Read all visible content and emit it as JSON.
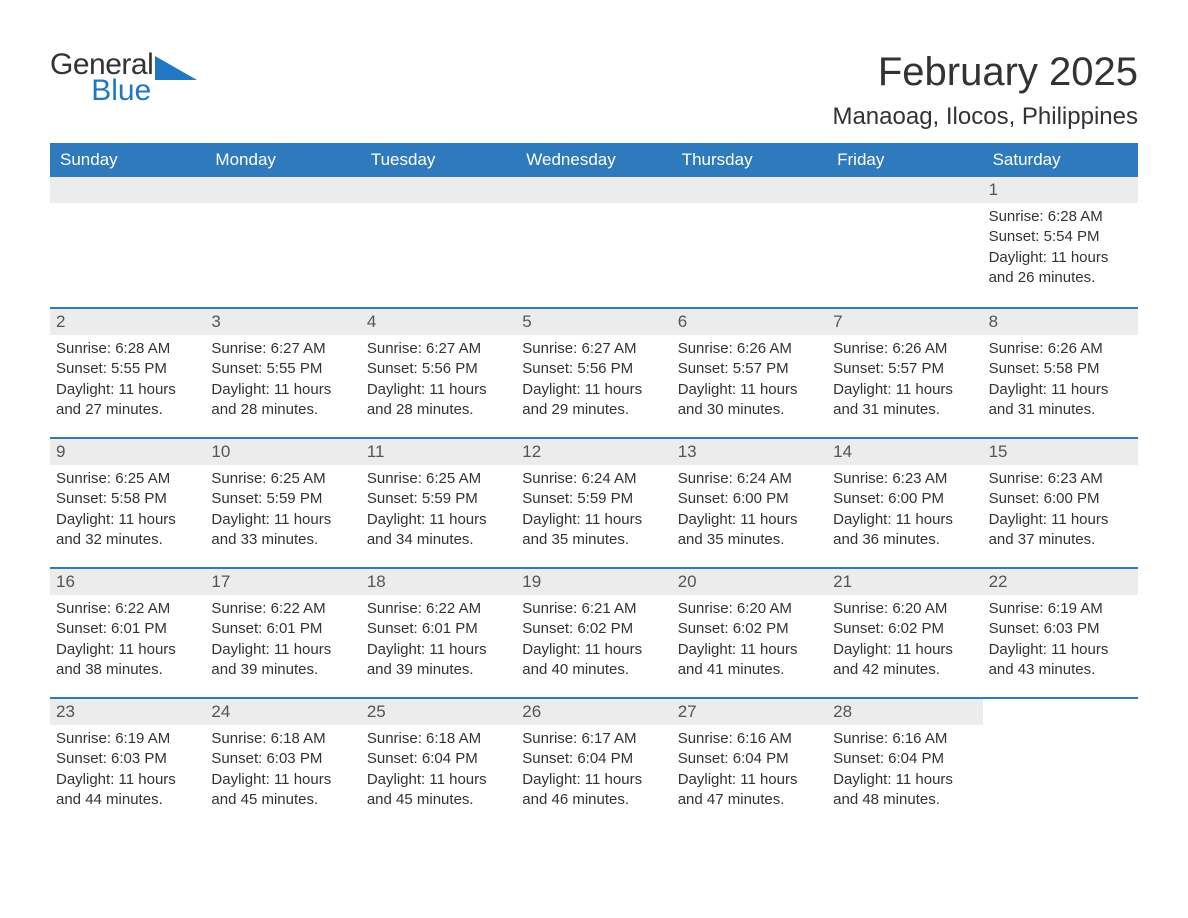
{
  "logo": {
    "text1": "General",
    "text2": "Blue",
    "triangle_color": "#1f78c1"
  },
  "title": "February 2025",
  "location": "Manaoag, Ilocos, Philippines",
  "colors": {
    "header_bg": "#2f79bd",
    "header_text": "#ffffff",
    "daynum_bg": "#ececec",
    "week_divider": "#2f79bd",
    "body_text": "#333333",
    "logo_blue": "#1f78c1"
  },
  "fonts": {
    "title_size": 40,
    "location_size": 24,
    "dow_size": 17,
    "daynum_size": 17,
    "body_size": 15
  },
  "dow": [
    "Sunday",
    "Monday",
    "Tuesday",
    "Wednesday",
    "Thursday",
    "Friday",
    "Saturday"
  ],
  "weeks": [
    [
      null,
      null,
      null,
      null,
      null,
      null,
      {
        "n": "1",
        "sr": "Sunrise: 6:28 AM",
        "ss": "Sunset: 5:54 PM",
        "d1": "Daylight: 11 hours",
        "d2": "and 26 minutes."
      }
    ],
    [
      {
        "n": "2",
        "sr": "Sunrise: 6:28 AM",
        "ss": "Sunset: 5:55 PM",
        "d1": "Daylight: 11 hours",
        "d2": "and 27 minutes."
      },
      {
        "n": "3",
        "sr": "Sunrise: 6:27 AM",
        "ss": "Sunset: 5:55 PM",
        "d1": "Daylight: 11 hours",
        "d2": "and 28 minutes."
      },
      {
        "n": "4",
        "sr": "Sunrise: 6:27 AM",
        "ss": "Sunset: 5:56 PM",
        "d1": "Daylight: 11 hours",
        "d2": "and 28 minutes."
      },
      {
        "n": "5",
        "sr": "Sunrise: 6:27 AM",
        "ss": "Sunset: 5:56 PM",
        "d1": "Daylight: 11 hours",
        "d2": "and 29 minutes."
      },
      {
        "n": "6",
        "sr": "Sunrise: 6:26 AM",
        "ss": "Sunset: 5:57 PM",
        "d1": "Daylight: 11 hours",
        "d2": "and 30 minutes."
      },
      {
        "n": "7",
        "sr": "Sunrise: 6:26 AM",
        "ss": "Sunset: 5:57 PM",
        "d1": "Daylight: 11 hours",
        "d2": "and 31 minutes."
      },
      {
        "n": "8",
        "sr": "Sunrise: 6:26 AM",
        "ss": "Sunset: 5:58 PM",
        "d1": "Daylight: 11 hours",
        "d2": "and 31 minutes."
      }
    ],
    [
      {
        "n": "9",
        "sr": "Sunrise: 6:25 AM",
        "ss": "Sunset: 5:58 PM",
        "d1": "Daylight: 11 hours",
        "d2": "and 32 minutes."
      },
      {
        "n": "10",
        "sr": "Sunrise: 6:25 AM",
        "ss": "Sunset: 5:59 PM",
        "d1": "Daylight: 11 hours",
        "d2": "and 33 minutes."
      },
      {
        "n": "11",
        "sr": "Sunrise: 6:25 AM",
        "ss": "Sunset: 5:59 PM",
        "d1": "Daylight: 11 hours",
        "d2": "and 34 minutes."
      },
      {
        "n": "12",
        "sr": "Sunrise: 6:24 AM",
        "ss": "Sunset: 5:59 PM",
        "d1": "Daylight: 11 hours",
        "d2": "and 35 minutes."
      },
      {
        "n": "13",
        "sr": "Sunrise: 6:24 AM",
        "ss": "Sunset: 6:00 PM",
        "d1": "Daylight: 11 hours",
        "d2": "and 35 minutes."
      },
      {
        "n": "14",
        "sr": "Sunrise: 6:23 AM",
        "ss": "Sunset: 6:00 PM",
        "d1": "Daylight: 11 hours",
        "d2": "and 36 minutes."
      },
      {
        "n": "15",
        "sr": "Sunrise: 6:23 AM",
        "ss": "Sunset: 6:00 PM",
        "d1": "Daylight: 11 hours",
        "d2": "and 37 minutes."
      }
    ],
    [
      {
        "n": "16",
        "sr": "Sunrise: 6:22 AM",
        "ss": "Sunset: 6:01 PM",
        "d1": "Daylight: 11 hours",
        "d2": "and 38 minutes."
      },
      {
        "n": "17",
        "sr": "Sunrise: 6:22 AM",
        "ss": "Sunset: 6:01 PM",
        "d1": "Daylight: 11 hours",
        "d2": "and 39 minutes."
      },
      {
        "n": "18",
        "sr": "Sunrise: 6:22 AM",
        "ss": "Sunset: 6:01 PM",
        "d1": "Daylight: 11 hours",
        "d2": "and 39 minutes."
      },
      {
        "n": "19",
        "sr": "Sunrise: 6:21 AM",
        "ss": "Sunset: 6:02 PM",
        "d1": "Daylight: 11 hours",
        "d2": "and 40 minutes."
      },
      {
        "n": "20",
        "sr": "Sunrise: 6:20 AM",
        "ss": "Sunset: 6:02 PM",
        "d1": "Daylight: 11 hours",
        "d2": "and 41 minutes."
      },
      {
        "n": "21",
        "sr": "Sunrise: 6:20 AM",
        "ss": "Sunset: 6:02 PM",
        "d1": "Daylight: 11 hours",
        "d2": "and 42 minutes."
      },
      {
        "n": "22",
        "sr": "Sunrise: 6:19 AM",
        "ss": "Sunset: 6:03 PM",
        "d1": "Daylight: 11 hours",
        "d2": "and 43 minutes."
      }
    ],
    [
      {
        "n": "23",
        "sr": "Sunrise: 6:19 AM",
        "ss": "Sunset: 6:03 PM",
        "d1": "Daylight: 11 hours",
        "d2": "and 44 minutes."
      },
      {
        "n": "24",
        "sr": "Sunrise: 6:18 AM",
        "ss": "Sunset: 6:03 PM",
        "d1": "Daylight: 11 hours",
        "d2": "and 45 minutes."
      },
      {
        "n": "25",
        "sr": "Sunrise: 6:18 AM",
        "ss": "Sunset: 6:04 PM",
        "d1": "Daylight: 11 hours",
        "d2": "and 45 minutes."
      },
      {
        "n": "26",
        "sr": "Sunrise: 6:17 AM",
        "ss": "Sunset: 6:04 PM",
        "d1": "Daylight: 11 hours",
        "d2": "and 46 minutes."
      },
      {
        "n": "27",
        "sr": "Sunrise: 6:16 AM",
        "ss": "Sunset: 6:04 PM",
        "d1": "Daylight: 11 hours",
        "d2": "and 47 minutes."
      },
      {
        "n": "28",
        "sr": "Sunrise: 6:16 AM",
        "ss": "Sunset: 6:04 PM",
        "d1": "Daylight: 11 hours",
        "d2": "and 48 minutes."
      },
      null
    ]
  ]
}
